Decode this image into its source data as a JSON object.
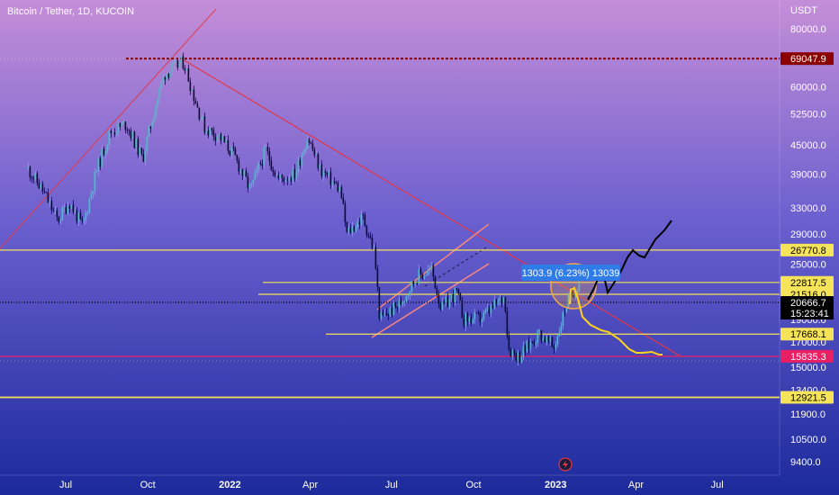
{
  "header": {
    "title": "Bitcoin / Tether, 1D, KUCOIN",
    "currency": "USDT"
  },
  "colors": {
    "bg_top": "#c58ed8",
    "bg_mid": "#6a5fcf",
    "bg_bottom": "#1c2a9c",
    "candle_up": "#26d4b8",
    "candle_down": "#0b1020",
    "trend_red": "#e0384a",
    "level_yellow": "#f5e35a",
    "level_dark_red": "#8b0000",
    "projection_black": "#000000",
    "projection_yellow": "#ffd21e"
  },
  "chart_data": {
    "type": "line",
    "title": "Bitcoin / Tether, 1D, KUCOIN",
    "y_axis": {
      "scale": "log",
      "ticks": [
        "80000.0",
        "69047.9",
        "60000.0",
        "52500.0",
        "45000.0",
        "39000.0",
        "33000.0",
        "29000.0",
        "26770.8",
        "25000.0",
        "22817.5",
        "21516.0",
        "20666.7",
        "19000.0",
        "17668.1",
        "17000.0",
        "15835.3",
        "15000.0",
        "13400.0",
        "12921.5",
        "11900.0",
        "10500.0",
        "9400.0"
      ],
      "tick_values": [
        80000,
        69047.9,
        60000,
        52500,
        45000,
        39000,
        33000,
        29000,
        26770.8,
        25000,
        22817.5,
        21516,
        20666.7,
        19000,
        17668.1,
        17000,
        15835.3,
        15000,
        13400,
        12921.5,
        11900,
        10500,
        9400
      ]
    },
    "x_axis": {
      "labels": [
        "Jul",
        "Oct",
        "2022",
        "Apr",
        "Jul",
        "Oct",
        "2023",
        "Apr",
        "Jul"
      ],
      "label_dates": [
        "2021-07-01",
        "2021-10-01",
        "2022-01-01",
        "2022-04-01",
        "2022-07-01",
        "2022-10-01",
        "2023-01-01",
        "2023-04-01",
        "2023-07-01"
      ],
      "bold": [
        false,
        false,
        true,
        false,
        false,
        false,
        true,
        false,
        false
      ]
    },
    "series": [
      {
        "values": [
          [
            "2021-05-20",
            40000
          ],
          [
            "2021-06-05",
            36000
          ],
          [
            "2021-06-22",
            31000
          ],
          [
            "2021-07-05",
            34000
          ],
          [
            "2021-07-20",
            30000
          ],
          [
            "2021-08-05",
            40000
          ],
          [
            "2021-08-20",
            48000
          ],
          [
            "2021-09-07",
            50000
          ],
          [
            "2021-09-25",
            42000
          ],
          [
            "2021-10-10",
            55000
          ],
          [
            "2021-10-20",
            64000
          ],
          [
            "2021-11-10",
            68000
          ],
          [
            "2021-11-26",
            54000
          ],
          [
            "2021-12-04",
            49000
          ],
          [
            "2021-12-20",
            47000
          ],
          [
            "2022-01-05",
            43000
          ],
          [
            "2022-01-24",
            36000
          ],
          [
            "2022-02-10",
            44000
          ],
          [
            "2022-02-24",
            38000
          ],
          [
            "2022-03-15",
            39000
          ],
          [
            "2022-03-29",
            47000
          ],
          [
            "2022-04-12",
            40000
          ],
          [
            "2022-05-05",
            36000
          ],
          [
            "2022-05-12",
            29000
          ],
          [
            "2022-05-30",
            31500
          ],
          [
            "2022-06-12",
            26500
          ],
          [
            "2022-06-18",
            19000
          ],
          [
            "2022-07-10",
            20500
          ],
          [
            "2022-07-30",
            23500
          ],
          [
            "2022-08-15",
            24300
          ],
          [
            "2022-08-26",
            20000
          ],
          [
            "2022-09-12",
            21800
          ],
          [
            "2022-09-20",
            19000
          ],
          [
            "2022-10-10",
            19100
          ],
          [
            "2022-11-05",
            21300
          ],
          [
            "2022-11-09",
            16500
          ],
          [
            "2022-11-21",
            15800
          ],
          [
            "2022-12-14",
            17800
          ],
          [
            "2022-12-30",
            16500
          ],
          [
            "2023-01-14",
            20800
          ],
          [
            "2023-01-28",
            23000
          ]
        ]
      }
    ],
    "levels": [
      {
        "value": 69047.9,
        "label": "69047.9",
        "color": "#8b0000",
        "text_color": "#ffffff",
        "style": "dotted"
      },
      {
        "value": 26770.8,
        "label": "26770.8",
        "color": "#f5e35a",
        "text_color": "#000000",
        "style": "solid"
      },
      {
        "value": 22817.5,
        "label": "22817.5",
        "color": "#f5e35a",
        "text_color": "#000000",
        "style": "solid"
      },
      {
        "value": 21516.0,
        "label": "21516.0",
        "color": "#f5e35a",
        "text_color": "#000000",
        "style": "solid"
      },
      {
        "value": 20666.7,
        "label": "20666.7",
        "color": "#000000",
        "text_color": "#ffffff",
        "style": "dotted",
        "extra": "15:23:41"
      },
      {
        "value": 17668.1,
        "label": "17668.1",
        "color": "#f5e35a",
        "text_color": "#000000",
        "style": "solid"
      },
      {
        "value": 15835.3,
        "label": "15835.3",
        "color": "#e91e63",
        "text_color": "#ffffff",
        "style": "solid"
      },
      {
        "value": 12921.5,
        "label": "12921.5",
        "color": "#f5e35a",
        "text_color": "#000000",
        "style": "solid"
      }
    ],
    "measure": {
      "text": "1303.9 (6.23%) 13039"
    },
    "grid": false,
    "legend": "none"
  }
}
